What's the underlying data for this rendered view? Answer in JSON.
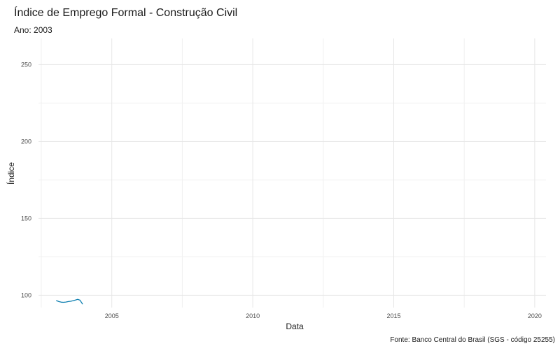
{
  "chart_data": {
    "type": "line",
    "title": "Índice de Emprego Formal - Construção Civil",
    "subtitle": "Ano: 2003",
    "xlabel": "Data",
    "ylabel": "Índice",
    "caption": "Fonte: Banco Central do Brasil (SGS - código 25255)",
    "xlim": [
      2002.4,
      2020.4
    ],
    "ylim": [
      92,
      267
    ],
    "x_ticks": [
      {
        "value": 2005,
        "label": "2005"
      },
      {
        "value": 2010,
        "label": "2010"
      },
      {
        "value": 2015,
        "label": "2015"
      },
      {
        "value": 2020,
        "label": "2020"
      }
    ],
    "y_ticks": [
      {
        "value": 100,
        "label": "100"
      },
      {
        "value": 150,
        "label": "150"
      },
      {
        "value": 200,
        "label": "200"
      },
      {
        "value": 250,
        "label": "250"
      }
    ],
    "grid": true,
    "series": [
      {
        "color": "#0d7fb0",
        "points": [
          {
            "x": 2003.04,
            "y": 96.5
          },
          {
            "x": 2003.12,
            "y": 95.9
          },
          {
            "x": 2003.21,
            "y": 95.5
          },
          {
            "x": 2003.29,
            "y": 95.4
          },
          {
            "x": 2003.37,
            "y": 95.6
          },
          {
            "x": 2003.46,
            "y": 95.9
          },
          {
            "x": 2003.54,
            "y": 96.1
          },
          {
            "x": 2003.62,
            "y": 96.4
          },
          {
            "x": 2003.71,
            "y": 96.9
          },
          {
            "x": 2003.79,
            "y": 97.3
          },
          {
            "x": 2003.87,
            "y": 96.8
          },
          {
            "x": 2003.96,
            "y": 94.4
          }
        ]
      }
    ]
  }
}
